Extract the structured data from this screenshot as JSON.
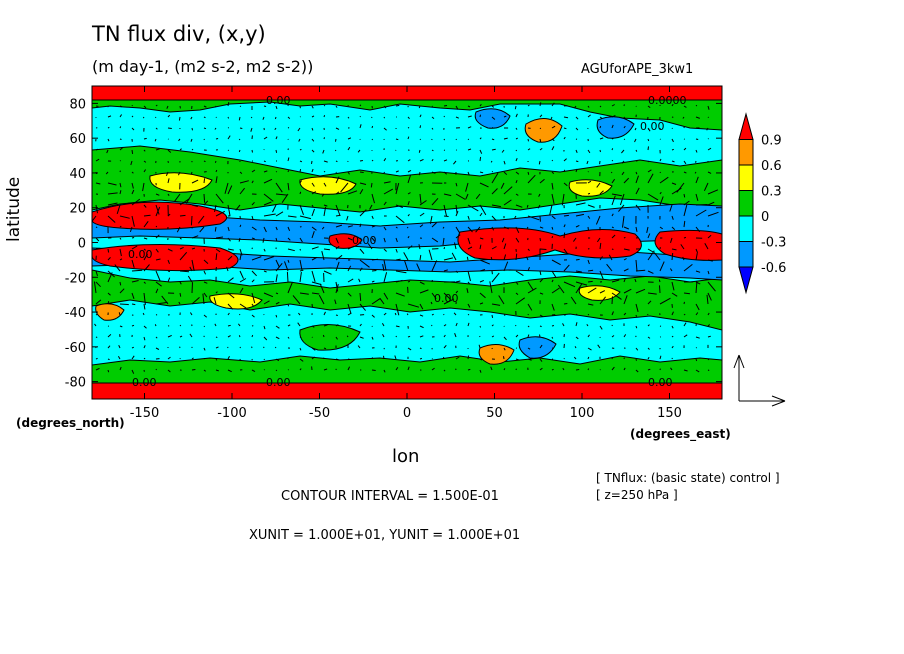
{
  "chart_data": {
    "type": "heatmap",
    "title": "TN flux div, (x,y)",
    "subtitle": "(m day-1, (m2 s-2, m2 s-2))",
    "run_name": "AGUforAPE_3kw1",
    "xlabel": "lon",
    "ylabel": "latitude",
    "x_units": "(degrees_east)",
    "y_units": "(degrees_north)",
    "xlim": [
      -180,
      180
    ],
    "ylim": [
      -90,
      90
    ],
    "x_ticks": [
      "-150",
      "-100",
      "-50",
      "0",
      "50",
      "100",
      "150"
    ],
    "y_ticks": [
      "-80",
      "-60",
      "-40",
      "-20",
      "0",
      "20",
      "40",
      "60",
      "80"
    ],
    "colorbar": {
      "labels": [
        "0.9",
        "0.6",
        "0.3",
        "0",
        "-0.3",
        "-0.6"
      ],
      "colors": [
        "#ff0000",
        "#ff9900",
        "#ffff00",
        "#00cc00",
        "#00ffff",
        "#0099ff",
        "#0000ff"
      ]
    },
    "notes": [
      "[ TNflux: (basic state) control ]",
      "[ z=250 hPa ]"
    ],
    "contour_interval": "CONTOUR INTERVAL = 1.500E-01",
    "vector_units": "XUNIT = 1.000E+01, YUNIT = 1.000E+01"
  }
}
